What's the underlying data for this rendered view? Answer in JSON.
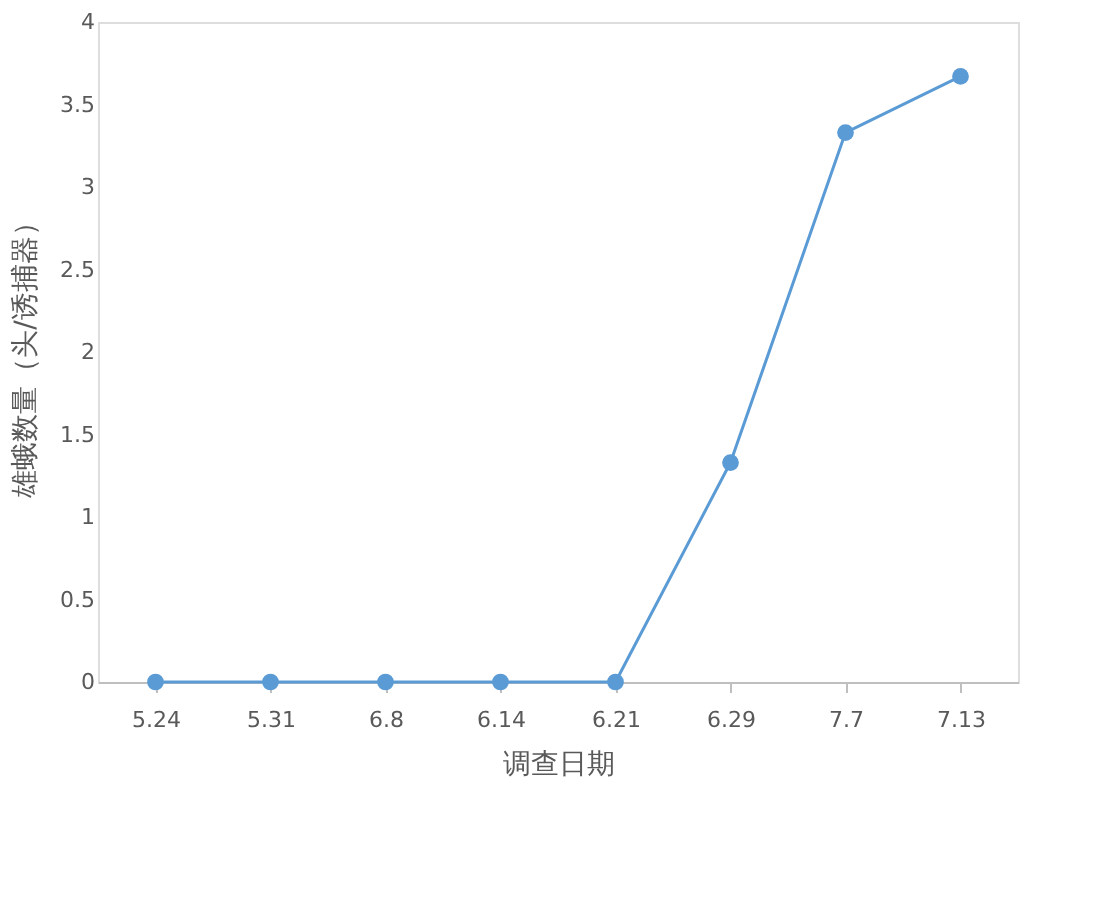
{
  "chart_data": {
    "type": "line",
    "xlabel": "调查日期",
    "ylabel": "雄蛾数量（头/诱捕器）",
    "categories": [
      "5.24",
      "5.31",
      "6.8",
      "6.14",
      "6.21",
      "6.29",
      "7.7",
      "7.13"
    ],
    "series": [
      {
        "color": "#5b9bd5",
        "values": [
          0,
          0,
          0,
          0,
          0,
          1.33,
          3.33,
          3.67
        ]
      }
    ],
    "ylim": [
      0,
      4
    ],
    "yticks": [
      0,
      0.5,
      1,
      1.5,
      2,
      2.5,
      3,
      3.5,
      4
    ],
    "grid": false,
    "marker": "circle",
    "line_style": "solid"
  }
}
